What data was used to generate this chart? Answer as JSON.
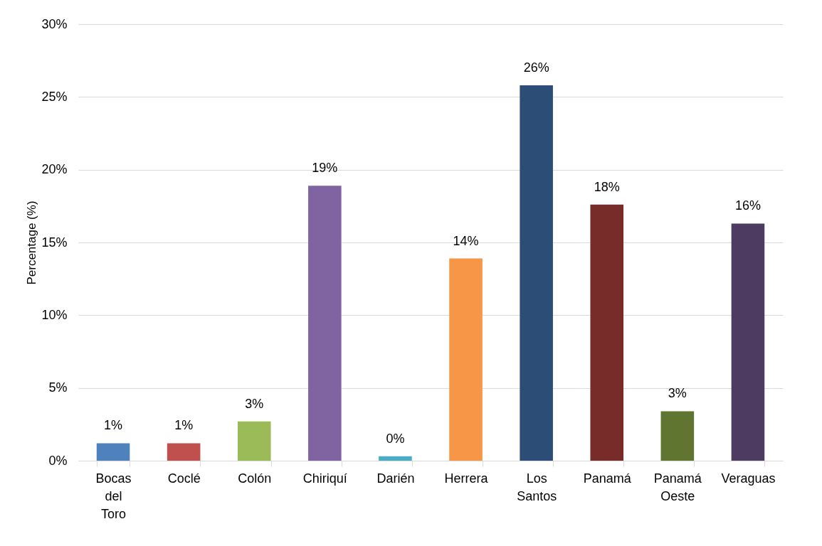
{
  "chart_data": {
    "type": "bar",
    "ylabel": "Percentage (%)",
    "categories": [
      "Bocas del Toro",
      "Coclé",
      "Colón",
      "Chiriquí",
      "Darién",
      "Herrera",
      "Los Santos",
      "Panamá",
      "Panamá Oeste",
      "Veraguas"
    ],
    "values": [
      1.2,
      1.2,
      2.7,
      18.9,
      0.3,
      13.9,
      25.8,
      17.6,
      3.4,
      16.3
    ],
    "value_labels": [
      "1%",
      "1%",
      "3%",
      "19%",
      "0%",
      "14%",
      "26%",
      "18%",
      "3%",
      "16%"
    ],
    "colors": [
      "#4f81bd",
      "#c0504d",
      "#9bbb59",
      "#8064a2",
      "#4bacc6",
      "#f79646",
      "#2c4d75",
      "#772c2a",
      "#5f7530",
      "#4d3b62"
    ],
    "ylim": [
      0,
      30
    ],
    "yticks": [
      {
        "value": 0,
        "label": "0%"
      },
      {
        "value": 5,
        "label": "5%"
      },
      {
        "value": 10,
        "label": "10%"
      },
      {
        "value": 15,
        "label": "15%"
      },
      {
        "value": 20,
        "label": "20%"
      },
      {
        "value": 25,
        "label": "25%"
      },
      {
        "value": 30,
        "label": "30%"
      }
    ],
    "grid": "y"
  }
}
